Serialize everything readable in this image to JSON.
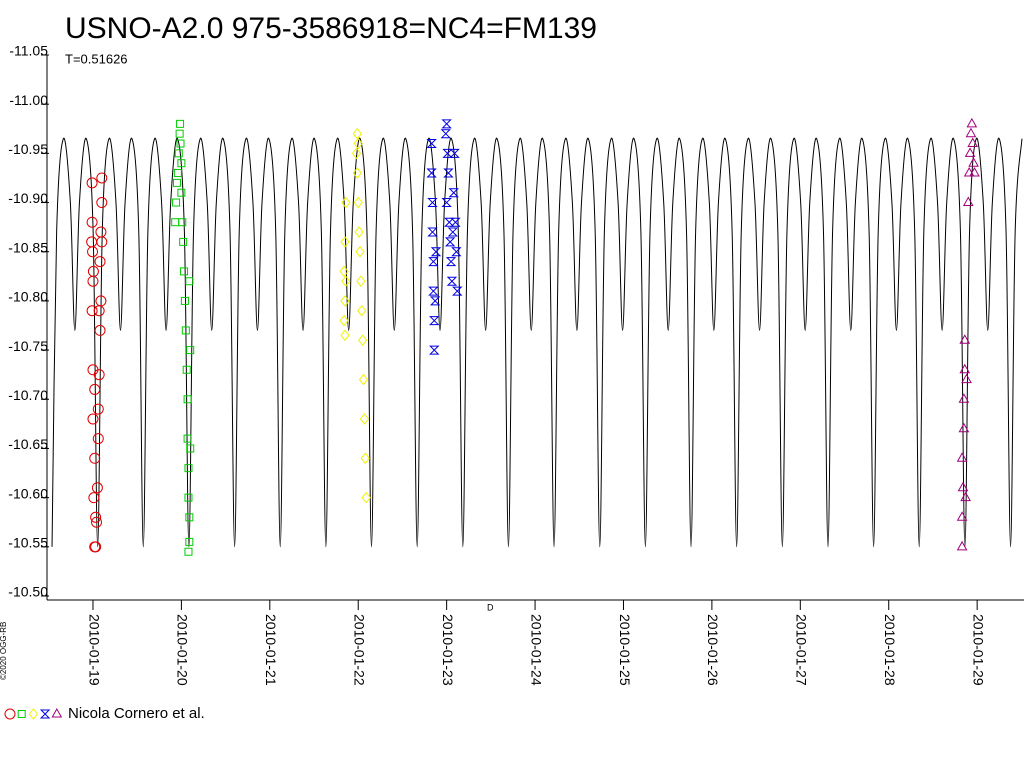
{
  "chart_data": {
    "type": "scatter",
    "title": "USNO-A2.0 975-3586918=NC4=FM139",
    "subtitle": "T=0.51626",
    "copyright": "©2020 OGG-RB",
    "x_marker": "D",
    "legend_label": "Nicola Cornero et al.",
    "xlim": [
      18.48,
      29.53
    ],
    "xticks": [
      {
        "value": 19,
        "label": "2010-01-19"
      },
      {
        "value": 20,
        "label": "2010-01-20"
      },
      {
        "value": 21,
        "label": "2010-01-21"
      },
      {
        "value": 22,
        "label": "2010-01-22"
      },
      {
        "value": 23,
        "label": "2010-01-23"
      },
      {
        "value": 24,
        "label": "2010-01-24"
      },
      {
        "value": 25,
        "label": "2010-01-25"
      },
      {
        "value": 26,
        "label": "2010-01-26"
      },
      {
        "value": 27,
        "label": "2010-01-27"
      },
      {
        "value": 28,
        "label": "2010-01-28"
      },
      {
        "value": 29,
        "label": "2010-01-29"
      }
    ],
    "ylim": [
      -10.5,
      -11.05
    ],
    "yticks": [
      -11.05,
      {
        "value": -11.0,
        "label": "-11.00"
      },
      -10.95,
      {
        "value": -10.9,
        "label": "-10.90"
      },
      -10.85,
      {
        "value": -10.8,
        "label": "-10.80"
      },
      -10.75,
      {
        "value": -10.7,
        "label": "-10.70"
      },
      -10.65,
      {
        "value": -10.6,
        "label": "-10.60"
      },
      -10.55,
      {
        "value": -10.5,
        "label": "-10.50"
      }
    ],
    "model": {
      "color": "#000000",
      "x": [
        18.537,
        18.589,
        18.666,
        18.744,
        18.795,
        18.847,
        18.924,
        19.002,
        19.053,
        19.105,
        19.182,
        19.26,
        19.311,
        19.363,
        19.44,
        19.518,
        19.569,
        19.621,
        19.698,
        19.776,
        19.827,
        19.879,
        19.956,
        20.034,
        20.085,
        20.137,
        20.214,
        20.292,
        20.343,
        20.395,
        20.472,
        20.55,
        20.602,
        20.654,
        20.731,
        20.809,
        20.86,
        20.912,
        20.989,
        21.067,
        21.118,
        21.17,
        21.247,
        21.325,
        21.376,
        21.428,
        21.505,
        21.583,
        21.634,
        21.686,
        21.763,
        21.841,
        21.892,
        21.944,
        22.021,
        22.099,
        22.15,
        22.202,
        22.279,
        22.357,
        22.408,
        22.46,
        22.537,
        22.615,
        22.667,
        22.719,
        22.796,
        22.874,
        22.925,
        22.977,
        23.054,
        23.132,
        23.183,
        23.235,
        23.312,
        23.39,
        23.441,
        23.493,
        23.57,
        23.648,
        23.699,
        23.751,
        23.828,
        23.906,
        23.957,
        24.009,
        24.086,
        24.164,
        24.215,
        24.267,
        24.344,
        24.422,
        24.473,
        24.525,
        24.602,
        24.68,
        24.732,
        24.784,
        24.861,
        24.939,
        24.99,
        25.042,
        25.119,
        25.197,
        25.248,
        25.3,
        25.377,
        25.455,
        25.506,
        25.558,
        25.635,
        25.713,
        25.764,
        25.816,
        25.893,
        25.971,
        26.022,
        26.074,
        26.151,
        26.229,
        26.28,
        26.332,
        26.409,
        26.487,
        26.539,
        26.591,
        26.668,
        26.746,
        26.797,
        26.849,
        26.926,
        27.004,
        27.055,
        27.107,
        27.184,
        27.262,
        27.313,
        27.365,
        27.442,
        27.52,
        27.571,
        27.623,
        27.7,
        27.778,
        27.829,
        27.881,
        27.958,
        28.036,
        28.087,
        28.139,
        28.216,
        28.294,
        28.345,
        28.397,
        28.474,
        28.552,
        28.604,
        28.656,
        28.733,
        28.811,
        28.862,
        28.914,
        28.991,
        29.069,
        29.12,
        29.172,
        29.249,
        29.327,
        29.378,
        29.43,
        29.507
      ],
      "y": [
        -10.55,
        -10.87,
        -10.965,
        -10.9,
        -10.77,
        -10.9,
        -10.965,
        -10.87,
        -10.55,
        -10.87,
        -10.965,
        -10.9,
        -10.77,
        -10.9,
        -10.965,
        -10.87,
        -10.55,
        -10.87,
        -10.965,
        -10.9,
        -10.77,
        -10.9,
        -10.965,
        -10.87,
        -10.55,
        -10.87,
        -10.965,
        -10.9,
        -10.77,
        -10.9,
        -10.965,
        -10.87,
        -10.55,
        -10.87,
        -10.965,
        -10.9,
        -10.77,
        -10.9,
        -10.965,
        -10.87,
        -10.55,
        -10.87,
        -10.965,
        -10.9,
        -10.77,
        -10.9,
        -10.965,
        -10.87,
        -10.55,
        -10.87,
        -10.965,
        -10.9,
        -10.77,
        -10.9,
        -10.965,
        -10.87,
        -10.55,
        -10.87,
        -10.965,
        -10.9,
        -10.77,
        -10.9,
        -10.965,
        -10.87,
        -10.55,
        -10.87,
        -10.965,
        -10.9,
        -10.77,
        -10.9,
        -10.965,
        -10.87,
        -10.55,
        -10.87,
        -10.965,
        -10.9,
        -10.77,
        -10.9,
        -10.965,
        -10.87,
        -10.55,
        -10.87,
        -10.965,
        -10.9,
        -10.77,
        -10.9,
        -10.965,
        -10.87,
        -10.55,
        -10.87,
        -10.965,
        -10.9,
        -10.77,
        -10.9,
        -10.965,
        -10.87,
        -10.55,
        -10.87,
        -10.965,
        -10.9,
        -10.77,
        -10.9,
        -10.965,
        -10.87,
        -10.55,
        -10.87,
        -10.965,
        -10.9,
        -10.77,
        -10.9,
        -10.965,
        -10.87,
        -10.55,
        -10.87,
        -10.965,
        -10.9,
        -10.77,
        -10.9,
        -10.965,
        -10.87,
        -10.55,
        -10.87,
        -10.965,
        -10.9,
        -10.77,
        -10.9,
        -10.965,
        -10.87,
        -10.55,
        -10.87,
        -10.965,
        -10.9,
        -10.77,
        -10.9,
        -10.965,
        -10.87,
        -10.55,
        -10.87,
        -10.965,
        -10.9,
        -10.77,
        -10.9,
        -10.965,
        -10.87,
        -10.55,
        -10.87,
        -10.965,
        -10.9,
        -10.77,
        -10.9,
        -10.965,
        -10.87,
        -10.55,
        -10.87,
        -10.965,
        -10.9,
        -10.77,
        -10.9,
        -10.965,
        -10.87,
        -10.55,
        -10.87,
        -10.965,
        -10.9,
        -10.77,
        -10.9,
        -10.965,
        -10.87,
        -10.55,
        -10.87,
        -10.965
      ]
    },
    "series": [
      {
        "color": "#e00000",
        "marker": "circle",
        "x": [
          18.99,
          18.99,
          18.995,
          19.0,
          18.99,
          19.0,
          19.02,
          19.0,
          19.02,
          19.01,
          19.03,
          19.02,
          19.1,
          19.1,
          19.09,
          19.1,
          19.08,
          19.09,
          19.08,
          19.07,
          19.06,
          19.06,
          19.05,
          19.04,
          19.03,
          18.985,
          19.005,
          19.07
        ],
        "y": [
          -10.92,
          -10.88,
          -10.85,
          -10.82,
          -10.79,
          -10.73,
          -10.71,
          -10.68,
          -10.64,
          -10.6,
          -10.58,
          -10.55,
          -10.925,
          -10.9,
          -10.87,
          -10.86,
          -10.84,
          -10.8,
          -10.77,
          -10.725,
          -10.69,
          -10.66,
          -10.61,
          -10.575,
          -10.55,
          -10.86,
          -10.83,
          -10.79
        ]
      },
      {
        "color": "#00cc00",
        "marker": "square",
        "x": [
          19.93,
          19.94,
          19.95,
          19.96,
          19.97,
          19.98,
          19.985,
          19.99,
          20.0,
          20.0,
          20.01,
          20.02,
          20.03,
          20.04,
          20.05,
          20.06,
          20.07,
          20.07,
          20.08,
          20.08,
          20.09,
          20.09,
          20.08,
          20.1,
          20.1,
          20.09
        ],
        "y": [
          -10.88,
          -10.9,
          -10.92,
          -10.93,
          -10.95,
          -10.97,
          -10.98,
          -10.96,
          -10.94,
          -10.91,
          -10.88,
          -10.86,
          -10.83,
          -10.8,
          -10.77,
          -10.73,
          -10.7,
          -10.66,
          -10.63,
          -10.6,
          -10.58,
          -10.555,
          -10.545,
          -10.75,
          -10.65,
          -10.82
        ]
      },
      {
        "color": "#f0f000",
        "marker": "diamond",
        "x": [
          21.86,
          21.85,
          21.84,
          21.85,
          21.84,
          21.85,
          21.86,
          21.98,
          21.99,
          22.0,
          21.99,
          22.0,
          22.01,
          22.02,
          22.03,
          22.04,
          22.05,
          22.06,
          22.07,
          22.08,
          22.09
        ],
        "y": [
          -10.9,
          -10.86,
          -10.83,
          -10.8,
          -10.78,
          -10.765,
          -10.82,
          -10.95,
          -10.97,
          -10.96,
          -10.93,
          -10.9,
          -10.87,
          -10.85,
          -10.82,
          -10.79,
          -10.76,
          -10.72,
          -10.68,
          -10.64,
          -10.6
        ]
      },
      {
        "color": "#0000e0",
        "marker": "hourglass",
        "x": [
          22.83,
          22.83,
          22.84,
          22.84,
          22.85,
          22.85,
          22.86,
          22.86,
          22.87,
          22.88,
          22.99,
          23.0,
          23.01,
          23.02,
          23.0,
          23.03,
          23.04,
          23.05,
          23.06,
          23.07,
          23.08,
          23.09,
          23.1,
          23.11,
          23.12
        ],
        "y": [
          -10.96,
          -10.93,
          -10.9,
          -10.87,
          -10.84,
          -10.81,
          -10.78,
          -10.75,
          -10.8,
          -10.85,
          -10.97,
          -10.98,
          -10.95,
          -10.93,
          -10.9,
          -10.88,
          -10.86,
          -10.84,
          -10.82,
          -10.87,
          -10.91,
          -10.95,
          -10.88,
          -10.85,
          -10.81
        ]
      },
      {
        "color": "#a0007a",
        "marker": "triangle",
        "x": [
          28.83,
          28.83,
          28.84,
          28.83,
          28.85,
          28.85,
          28.86,
          28.86,
          28.9,
          28.91,
          28.92,
          28.93,
          28.94,
          28.95,
          28.96,
          28.97,
          28.87,
          28.88
        ],
        "y": [
          -10.55,
          -10.58,
          -10.61,
          -10.64,
          -10.67,
          -10.7,
          -10.73,
          -10.76,
          -10.9,
          -10.93,
          -10.95,
          -10.97,
          -10.98,
          -10.96,
          -10.94,
          -10.93,
          -10.6,
          -10.72
        ]
      }
    ]
  }
}
